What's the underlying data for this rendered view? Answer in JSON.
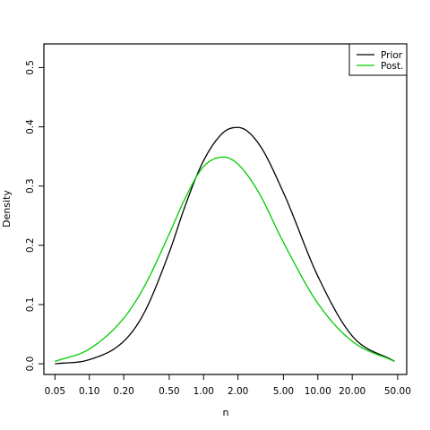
{
  "chart_data": {
    "type": "line",
    "x_scale": "log",
    "xlabel": "n",
    "ylabel": "Density",
    "xlim": [
      0.04,
      60
    ],
    "ylim": [
      -0.018,
      0.54
    ],
    "x_ticks": [
      0.05,
      0.1,
      0.2,
      0.5,
      1,
      2,
      5,
      10,
      20,
      50
    ],
    "x_tick_labels": [
      "0.05",
      "0.10",
      "0.20",
      "0.50",
      "1.00",
      "2.00",
      "5.00",
      "10.00",
      "20.00",
      "50.00"
    ],
    "y_ticks": [
      0.0,
      0.1,
      0.2,
      0.3,
      0.4,
      0.5
    ],
    "y_tick_labels": [
      "0.0",
      "0.1",
      "0.2",
      "0.3",
      "0.4",
      "0.5"
    ],
    "grid": false,
    "legend_position": "top-right",
    "series": [
      {
        "name": "Prior",
        "color": "#000000",
        "x": [
          0.05,
          0.1,
          0.2,
          0.3,
          0.5,
          0.7,
          1.0,
          1.5,
          2.0,
          3.0,
          5.0,
          10.0,
          20.0,
          47.0
        ],
        "y": [
          0.0,
          0.007,
          0.038,
          0.085,
          0.188,
          0.27,
          0.343,
          0.391,
          0.399,
          0.373,
          0.289,
          0.148,
          0.047,
          0.004
        ]
      },
      {
        "name": "Post.",
        "color": "#00cc00",
        "x": [
          0.05,
          0.1,
          0.2,
          0.3,
          0.5,
          0.7,
          1.0,
          1.5,
          2.0,
          3.0,
          5.0,
          10.0,
          20.0,
          47.0
        ],
        "y": [
          0.004,
          0.025,
          0.077,
          0.129,
          0.219,
          0.282,
          0.333,
          0.349,
          0.337,
          0.291,
          0.205,
          0.102,
          0.038,
          0.004
        ]
      }
    ]
  }
}
